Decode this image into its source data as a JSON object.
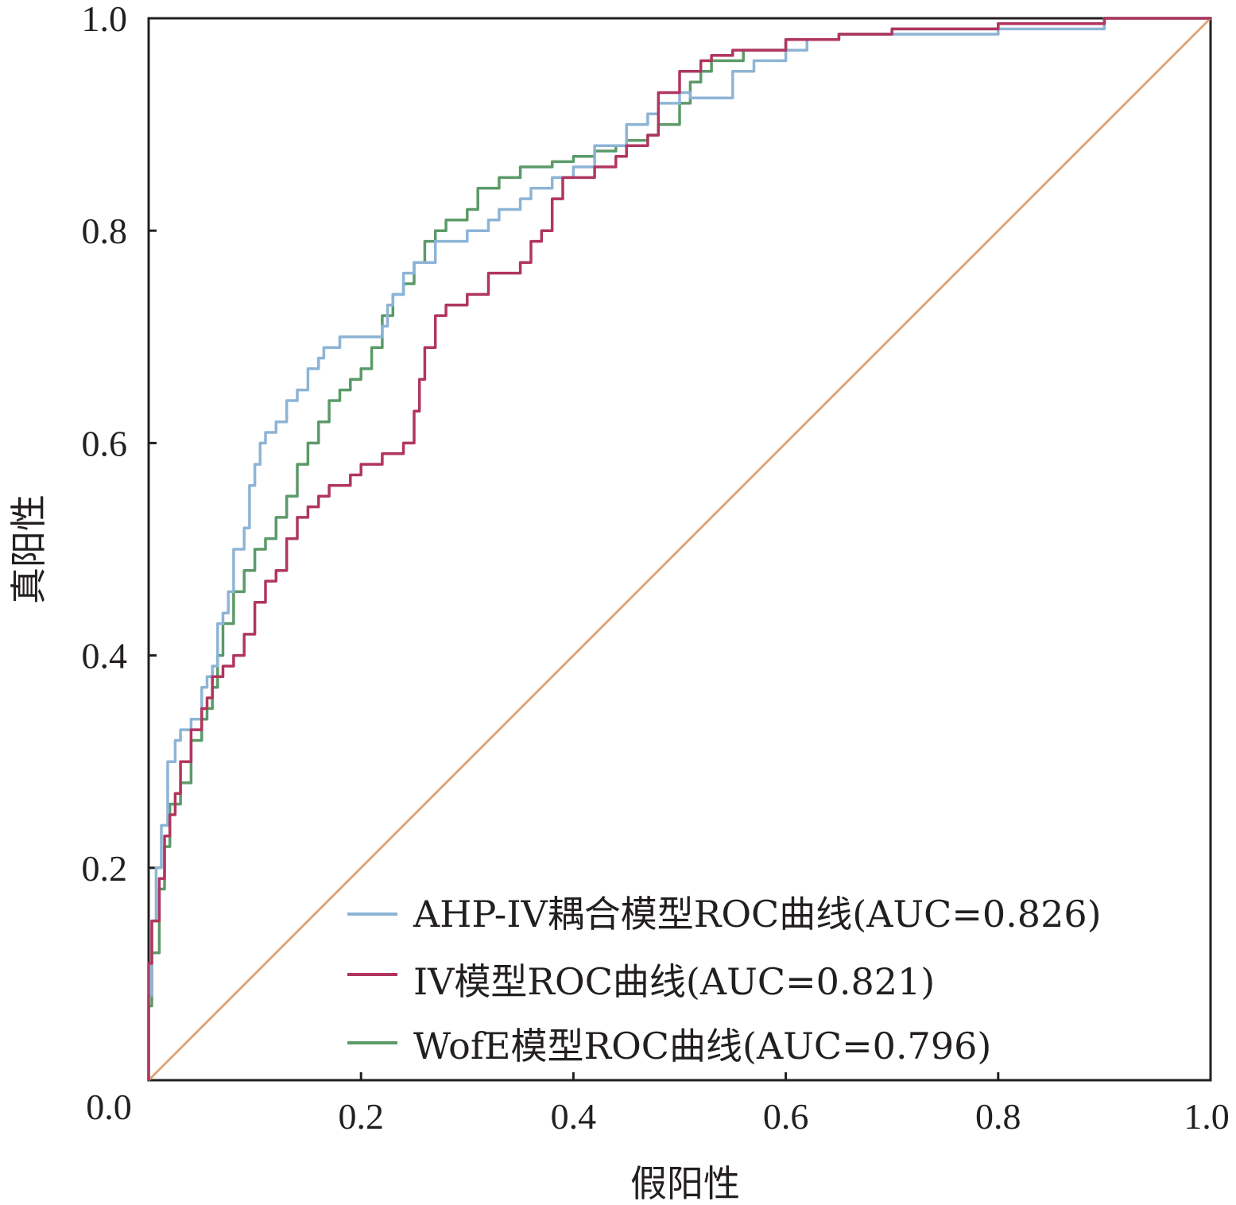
{
  "chart_data": {
    "type": "line",
    "title": "",
    "xlabel": "假阳性",
    "ylabel": "真阳性",
    "xlim": [
      0,
      1
    ],
    "ylim": [
      0,
      1
    ],
    "x_ticks": [
      "0.0",
      "0.2",
      "0.4",
      "0.6",
      "0.8",
      "1.0"
    ],
    "y_ticks": [
      "0.2",
      "0.4",
      "0.6",
      "0.8",
      "1.0"
    ],
    "legend_position": "bottom-right",
    "grid": false,
    "series": [
      {
        "name": "AHP-IV耦合模型ROC曲线(AUC=0.826)",
        "color": "#8db4d6",
        "x": [
          0,
          0.003,
          0.007,
          0.012,
          0.018,
          0.025,
          0.03,
          0.04,
          0.05,
          0.055,
          0.06,
          0.065,
          0.07,
          0.075,
          0.08,
          0.09,
          0.095,
          0.1,
          0.105,
          0.11,
          0.12,
          0.13,
          0.14,
          0.15,
          0.16,
          0.165,
          0.18,
          0.2,
          0.22,
          0.225,
          0.23,
          0.24,
          0.25,
          0.27,
          0.28,
          0.3,
          0.32,
          0.33,
          0.35,
          0.36,
          0.38,
          0.4,
          0.42,
          0.45,
          0.47,
          0.48,
          0.5,
          0.51,
          0.52,
          0.55,
          0.57,
          0.6,
          0.62,
          0.65,
          0.7,
          0.8,
          0.85,
          0.9,
          0.95,
          1.0
        ],
        "y": [
          0,
          0.08,
          0.15,
          0.2,
          0.24,
          0.3,
          0.32,
          0.33,
          0.34,
          0.37,
          0.38,
          0.39,
          0.43,
          0.44,
          0.46,
          0.5,
          0.52,
          0.56,
          0.58,
          0.6,
          0.61,
          0.62,
          0.64,
          0.65,
          0.67,
          0.68,
          0.69,
          0.7,
          0.7,
          0.71,
          0.73,
          0.74,
          0.76,
          0.77,
          0.79,
          0.79,
          0.8,
          0.81,
          0.82,
          0.83,
          0.84,
          0.85,
          0.86,
          0.88,
          0.9,
          0.91,
          0.92,
          0.93,
          0.925,
          0.925,
          0.95,
          0.96,
          0.97,
          0.98,
          0.985,
          0.985,
          0.99,
          0.99,
          1.0,
          1.0
        ]
      },
      {
        "name": "IV模型ROC曲线(AUC=0.821)",
        "color": "#b0365e",
        "x": [
          0,
          0.003,
          0.01,
          0.015,
          0.02,
          0.025,
          0.03,
          0.04,
          0.05,
          0.055,
          0.06,
          0.065,
          0.07,
          0.08,
          0.09,
          0.1,
          0.11,
          0.12,
          0.13,
          0.14,
          0.15,
          0.155,
          0.16,
          0.17,
          0.19,
          0.2,
          0.22,
          0.24,
          0.25,
          0.255,
          0.26,
          0.27,
          0.28,
          0.3,
          0.32,
          0.33,
          0.35,
          0.36,
          0.37,
          0.38,
          0.39,
          0.4,
          0.42,
          0.44,
          0.45,
          0.47,
          0.48,
          0.5,
          0.52,
          0.53,
          0.55,
          0.6,
          0.65,
          0.7,
          0.8,
          0.9,
          0.95,
          1.0
        ],
        "y": [
          0,
          0.11,
          0.15,
          0.19,
          0.23,
          0.25,
          0.27,
          0.3,
          0.33,
          0.35,
          0.36,
          0.38,
          0.38,
          0.39,
          0.4,
          0.42,
          0.45,
          0.47,
          0.48,
          0.51,
          0.53,
          0.54,
          0.54,
          0.55,
          0.56,
          0.57,
          0.58,
          0.59,
          0.6,
          0.63,
          0.66,
          0.69,
          0.72,
          0.73,
          0.74,
          0.76,
          0.76,
          0.77,
          0.79,
          0.8,
          0.83,
          0.85,
          0.85,
          0.86,
          0.87,
          0.88,
          0.89,
          0.93,
          0.95,
          0.96,
          0.965,
          0.97,
          0.98,
          0.985,
          0.99,
          0.995,
          1.0,
          1.0
        ]
      },
      {
        "name": "WofE模型ROC曲线(AUC=0.796)",
        "color": "#5b9a68",
        "x": [
          0,
          0.003,
          0.01,
          0.015,
          0.02,
          0.03,
          0.04,
          0.05,
          0.055,
          0.06,
          0.065,
          0.07,
          0.08,
          0.09,
          0.1,
          0.11,
          0.12,
          0.13,
          0.14,
          0.15,
          0.16,
          0.17,
          0.18,
          0.19,
          0.2,
          0.21,
          0.22,
          0.23,
          0.24,
          0.25,
          0.26,
          0.27,
          0.28,
          0.3,
          0.31,
          0.33,
          0.35,
          0.37,
          0.38,
          0.4,
          0.42,
          0.44,
          0.45,
          0.47,
          0.48,
          0.5,
          0.51,
          0.52,
          0.53,
          0.56,
          0.6,
          0.65,
          0.7,
          0.8,
          0.9,
          0.95,
          1.0
        ],
        "y": [
          0,
          0.07,
          0.12,
          0.18,
          0.22,
          0.26,
          0.28,
          0.32,
          0.34,
          0.35,
          0.37,
          0.4,
          0.43,
          0.46,
          0.48,
          0.5,
          0.51,
          0.53,
          0.55,
          0.58,
          0.6,
          0.62,
          0.64,
          0.65,
          0.66,
          0.67,
          0.69,
          0.72,
          0.74,
          0.75,
          0.77,
          0.79,
          0.8,
          0.81,
          0.82,
          0.84,
          0.85,
          0.86,
          0.86,
          0.865,
          0.87,
          0.875,
          0.88,
          0.885,
          0.89,
          0.9,
          0.92,
          0.94,
          0.95,
          0.96,
          0.97,
          0.98,
          0.985,
          0.99,
          0.995,
          1.0,
          1.0
        ]
      },
      {
        "name": "",
        "color": "#e0a57a",
        "x": [
          0,
          1
        ],
        "y": [
          0,
          1
        ]
      }
    ]
  }
}
